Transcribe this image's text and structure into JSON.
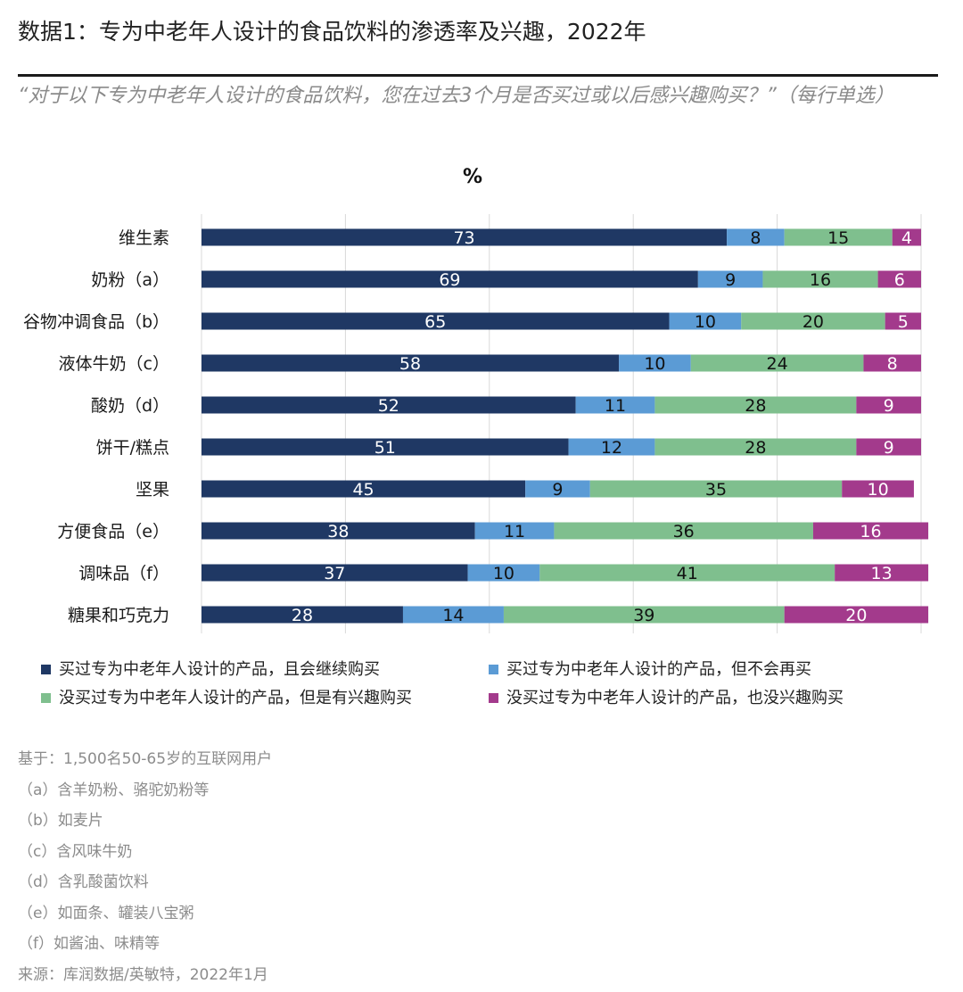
{
  "title": "数据1：专为中老年人设计的食品饮料的渗透率及兴趣，2022年",
  "subtitle": "“对于以下专为中老年人设计的食品饮料，您在过去3个月是否买过或以后感兴趣购买？”（每行单选）",
  "unit_label": "%",
  "chart_data": {
    "type": "bar",
    "orientation": "horizontal",
    "stacked": true,
    "categories": [
      "维生素",
      "奶粉（a）",
      "谷物冲调食品（b）",
      "液体牛奶（c）",
      "酸奶（d）",
      "饼干/糕点",
      "坚果",
      "方便食品（e）",
      "调味品（f）",
      "糖果和巧克力"
    ],
    "series": [
      {
        "name": "买过专为中老年人设计的产品，且会继续购买",
        "color": "#1f3864",
        "label_color": "#ffffff",
        "values": [
          73,
          69,
          65,
          58,
          52,
          51,
          45,
          38,
          37,
          28
        ]
      },
      {
        "name": "买过专为中老年人设计的产品，但不会再买",
        "color": "#5b9bd5",
        "label_color": "#111111",
        "values": [
          8,
          9,
          10,
          10,
          11,
          12,
          9,
          11,
          10,
          14
        ]
      },
      {
        "name": "没买过专为中老年人设计的产品，但是有兴趣购买",
        "color": "#7fbf8e",
        "label_color": "#111111",
        "values": [
          15,
          16,
          20,
          24,
          28,
          28,
          35,
          36,
          41,
          39
        ]
      },
      {
        "name": "没买过专为中老年人设计的产品，也没兴趣购买",
        "color": "#a33a8c",
        "label_color": "#ffffff",
        "values": [
          4,
          6,
          5,
          8,
          9,
          9,
          10,
          16,
          13,
          20
        ]
      }
    ],
    "xlim": [
      0,
      100
    ],
    "grid": true,
    "legend_position": "bottom"
  },
  "notes": [
    "基于：1,500名50-65岁的互联网用户",
    "（a）含羊奶粉、骆驼奶粉等",
    "（b）如麦片",
    "（c）含风味牛奶",
    "（d）含乳酸菌饮料",
    "（e）如面条、罐装八宝粥",
    "（f）如酱油、味精等"
  ],
  "source": "来源：库润数据/英敏特，2022年1月"
}
